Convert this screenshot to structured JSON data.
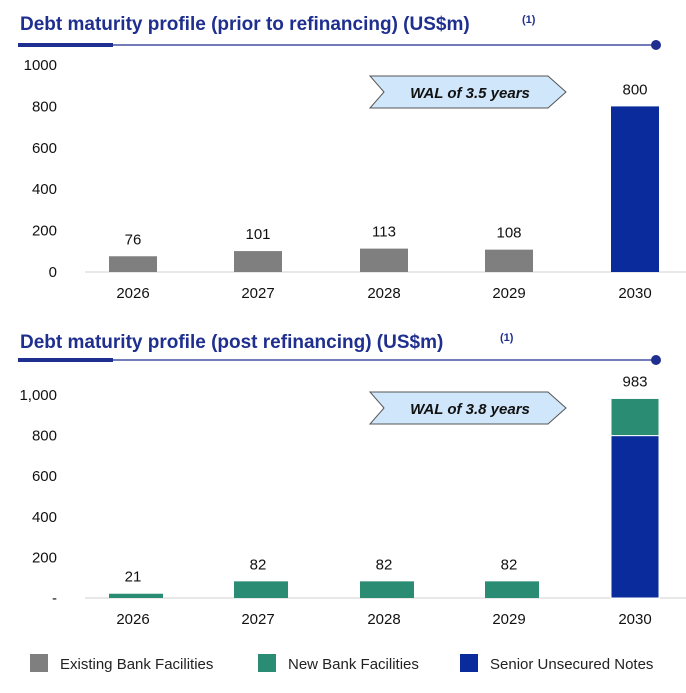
{
  "colors": {
    "existing": "#7f7f7f",
    "new": "#2a8c72",
    "notes": "#0a2b9c",
    "title": "#1f2f8f",
    "wal_fill": "#cfe6fb"
  },
  "legend": [
    "Existing Bank Facilities",
    "New Bank Facilities",
    "Senior Unsecured Notes"
  ],
  "chart_data": [
    {
      "type": "bar",
      "title": "Debt maturity profile (prior to refinancing) (US$m)",
      "footnote": "(1)",
      "annotation": "WAL of 3.5 years",
      "categories": [
        "2026",
        "2027",
        "2028",
        "2029",
        "2030"
      ],
      "yticks": [
        "0",
        "200",
        "400",
        "600",
        "800",
        "1000"
      ],
      "ylim": [
        0,
        1000
      ],
      "series": [
        {
          "name": "Existing Bank Facilities",
          "values": [
            76,
            101,
            113,
            108,
            0
          ]
        },
        {
          "name": "Senior Unsecured Notes",
          "values": [
            0,
            0,
            0,
            0,
            800
          ]
        }
      ],
      "data_labels": [
        "76",
        "101",
        "113",
        "108",
        "800"
      ]
    },
    {
      "type": "bar",
      "stacked": true,
      "title": "Debt maturity profile (post refinancing) (US$m)",
      "footnote": "(1)",
      "annotation": "WAL of 3.8 years",
      "categories": [
        "2026",
        "2027",
        "2028",
        "2029",
        "2030"
      ],
      "yticks": [
        "-",
        "200",
        "400",
        "600",
        "800",
        "1,000"
      ],
      "ylim": [
        0,
        1000
      ],
      "series": [
        {
          "name": "Senior Unsecured Notes",
          "values": [
            0,
            0,
            0,
            0,
            800
          ]
        },
        {
          "name": "New Bank Facilities",
          "values": [
            21,
            82,
            82,
            82,
            183
          ]
        }
      ],
      "data_labels": [
        "21",
        "82",
        "82",
        "82",
        "983"
      ]
    }
  ]
}
